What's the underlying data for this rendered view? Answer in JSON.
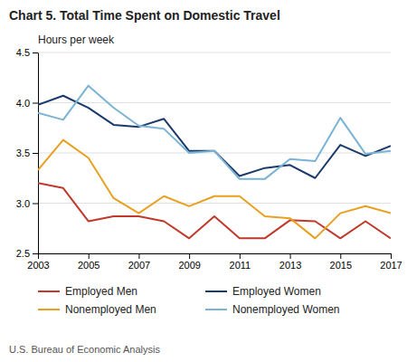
{
  "chart_data": {
    "type": "line",
    "title": "Chart 5. Total Time Spent on Domestic Travel",
    "y_label": "Hours per week",
    "source": "U.S. Bureau of Economic Analysis",
    "x": [
      2003,
      2004,
      2005,
      2006,
      2007,
      2008,
      2009,
      2010,
      2011,
      2012,
      2013,
      2014,
      2015,
      2016,
      2017
    ],
    "series": [
      {
        "name": "Employed Men",
        "color": "#c0392b",
        "values": [
          3.2,
          3.15,
          2.82,
          2.87,
          2.87,
          2.82,
          2.65,
          2.87,
          2.65,
          2.65,
          2.83,
          2.82,
          2.65,
          2.82,
          2.65
        ]
      },
      {
        "name": "Employed Women",
        "color": "#1a3a6b",
        "values": [
          3.98,
          4.07,
          3.95,
          3.78,
          3.76,
          3.84,
          3.52,
          3.52,
          3.27,
          3.35,
          3.38,
          3.25,
          3.58,
          3.47,
          3.57
        ]
      },
      {
        "name": "Nonemployed Men",
        "color": "#e8a020",
        "values": [
          3.33,
          3.63,
          3.45,
          3.05,
          2.9,
          3.07,
          2.97,
          3.07,
          3.07,
          2.87,
          2.85,
          2.65,
          2.9,
          2.97,
          2.9
        ]
      },
      {
        "name": "Nonemployed Women",
        "color": "#7ab3d4",
        "values": [
          3.9,
          3.83,
          4.17,
          3.95,
          3.77,
          3.74,
          3.5,
          3.52,
          3.24,
          3.24,
          3.44,
          3.42,
          3.85,
          3.49,
          3.52
        ]
      }
    ],
    "xlim": [
      2003,
      2017
    ],
    "xticks": [
      2003,
      2005,
      2007,
      2009,
      2011,
      2013,
      2015,
      2017
    ],
    "ylim": [
      2.5,
      4.5
    ],
    "yticks": [
      2.5,
      {
        "value": 3.0,
        "label": "3.0"
      },
      3.5,
      {
        "value": 4.0,
        "label": "4.0"
      },
      4.5
    ],
    "grid": "y",
    "legend": "bottom"
  }
}
